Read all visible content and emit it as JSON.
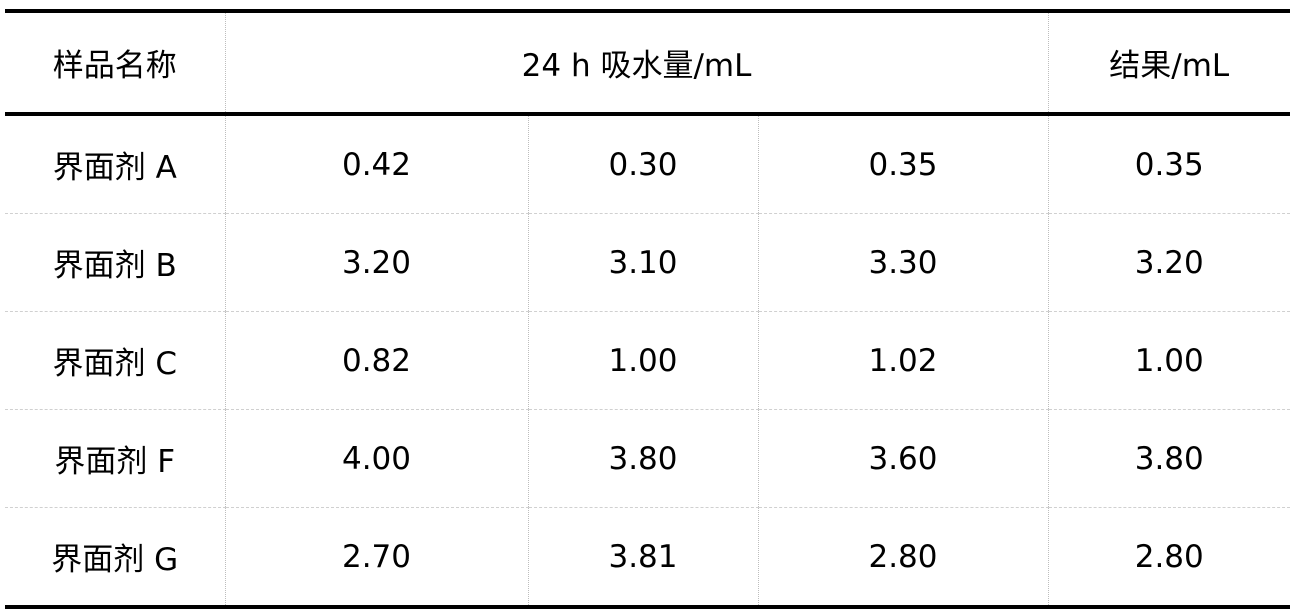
{
  "table": {
    "header": [
      "样品名称",
      "24 h 吸水量/mL",
      "结果/mL"
    ],
    "rows": [
      [
        "界面剂 A",
        "0.42",
        "0.30",
        "0.35",
        "0.35"
      ],
      [
        "界面剂 B",
        "3.20",
        "3.10",
        "3.30",
        "3.20"
      ],
      [
        "界面剂 C",
        "0.82",
        "1.00",
        "1.02",
        "1.00"
      ],
      [
        "界面剂 F",
        "4.00",
        "3.80",
        "3.60",
        "3.80"
      ],
      [
        "界面剂 G",
        "2.70",
        "3.81",
        "2.80",
        "2.80"
      ]
    ]
  }
}
